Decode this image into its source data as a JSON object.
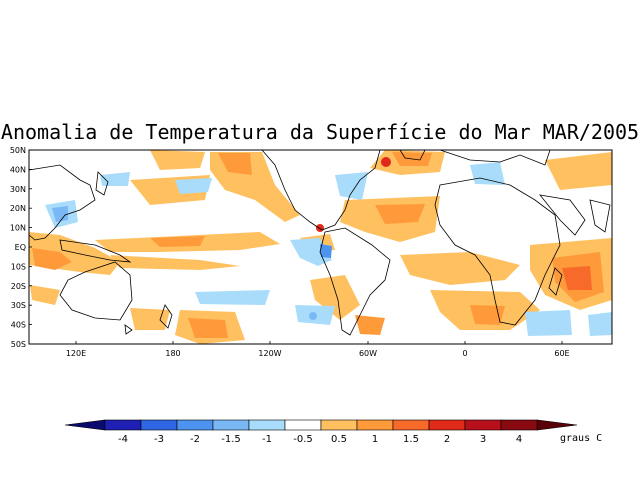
{
  "title": "Anomalia de Temperatura da Superfície do Mar MAR/2005",
  "latitude_labels": [
    "50N",
    "40N",
    "30N",
    "20N",
    "10N",
    "EQ",
    "10S",
    "20S",
    "30S",
    "40S",
    "50S"
  ],
  "longitude_labels": [
    "120E",
    "180",
    "120W",
    "60W",
    "0",
    "60E"
  ],
  "colorbar": {
    "units": "graus C",
    "tick_labels": [
      "-4",
      "-3",
      "-2",
      "-1.5",
      "-1",
      "-0.5",
      "0.5",
      "1",
      "1.5",
      "2",
      "3",
      "4"
    ],
    "colors": [
      "#1f1fb4",
      "#2f66e3",
      "#4d94f0",
      "#7ab8f5",
      "#a8dcfa",
      "#ffffff",
      "#ffc060",
      "#ff9a3a",
      "#f86a2a",
      "#e02a1a",
      "#b8101a",
      "#8a0a12"
    ]
  }
}
